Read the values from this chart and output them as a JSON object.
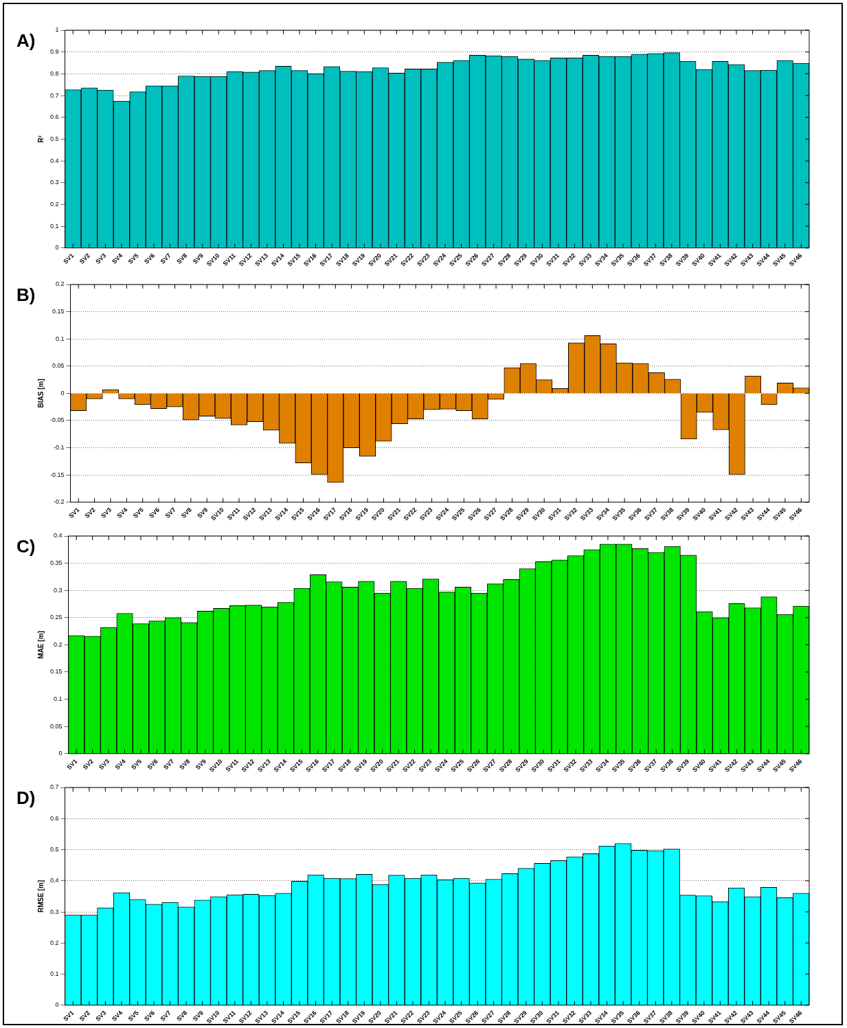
{
  "chart_data": [
    {
      "type": "bar",
      "title": "A)",
      "ylabel": "R²",
      "categories": [
        "SV1",
        "SV2",
        "SV3",
        "SV4",
        "SV5",
        "SV6",
        "SV7",
        "SV8",
        "SV9",
        "SV10",
        "SV11",
        "SV12",
        "SV13",
        "SV14",
        "SV15",
        "SV16",
        "SV17",
        "SV18",
        "SV19",
        "SV20",
        "SV21",
        "SV22",
        "SV23",
        "SV24",
        "SV25",
        "SV26",
        "SV27",
        "SV28",
        "SV29",
        "SV30",
        "SV31",
        "SV32",
        "SV33",
        "SV34",
        "SV35",
        "SV36",
        "SV37",
        "SV38",
        "SV39",
        "SV40",
        "SV41",
        "SV42",
        "SV43",
        "SV44",
        "SV45",
        "SV46"
      ],
      "values": [
        0.727,
        0.735,
        0.725,
        0.675,
        0.717,
        0.745,
        0.745,
        0.79,
        0.788,
        0.788,
        0.81,
        0.808,
        0.815,
        0.835,
        0.815,
        0.8,
        0.833,
        0.812,
        0.81,
        0.828,
        0.803,
        0.822,
        0.822,
        0.853,
        0.862,
        0.885,
        0.883,
        0.88,
        0.868,
        0.862,
        0.873,
        0.873,
        0.885,
        0.88,
        0.88,
        0.89,
        0.893,
        0.897,
        0.858,
        0.82,
        0.857,
        0.843,
        0.815,
        0.817,
        0.862,
        0.848
      ],
      "color": "#00bfbf",
      "ylim": [
        0,
        1
      ],
      "yticks": [
        0,
        0.1,
        0.2,
        0.3,
        0.4,
        0.5,
        0.6,
        0.7,
        0.8,
        0.9,
        1
      ],
      "grid": "y",
      "line_style": "dotted",
      "legend": false
    },
    {
      "type": "bar",
      "title": "B)",
      "ylabel": "BIAS [m]",
      "categories": [
        "SV1",
        "SV2",
        "SV3",
        "SV4",
        "SV5",
        "SV6",
        "SV7",
        "SV8",
        "SV9",
        "SV10",
        "SV11",
        "SV12",
        "SV13",
        "SV14",
        "SV15",
        "SV16",
        "SV17",
        "SV18",
        "SV19",
        "SV20",
        "SV21",
        "SV22",
        "SV23",
        "SV24",
        "SV25",
        "SV26",
        "SV27",
        "SV28",
        "SV29",
        "SV30",
        "SV31",
        "SV32",
        "SV33",
        "SV34",
        "SV35",
        "SV36",
        "SV37",
        "SV38",
        "SV39",
        "SV40",
        "SV41",
        "SV42",
        "SV43",
        "SV44",
        "SV45",
        "SV46"
      ],
      "values": [
        -0.032,
        -0.01,
        0.007,
        -0.01,
        -0.021,
        -0.028,
        -0.025,
        -0.049,
        -0.042,
        -0.046,
        -0.058,
        -0.052,
        -0.068,
        -0.092,
        -0.128,
        -0.149,
        -0.164,
        -0.1,
        -0.116,
        -0.088,
        -0.056,
        -0.047,
        -0.03,
        -0.029,
        -0.032,
        -0.047,
        -0.011,
        0.047,
        0.055,
        0.025,
        0.009,
        0.093,
        0.106,
        0.091,
        0.056,
        0.055,
        0.038,
        0.026,
        -0.084,
        -0.035,
        -0.067,
        -0.149,
        0.032,
        -0.021,
        0.019,
        0.01
      ],
      "color": "#e08000",
      "ylim": [
        -0.2,
        0.2
      ],
      "yticks": [
        -0.2,
        -0.15,
        -0.1,
        -0.05,
        0,
        0.05,
        0.1,
        0.15,
        0.2
      ],
      "grid": "y",
      "line_style": "dotted",
      "legend": false
    },
    {
      "type": "bar",
      "title": "C)",
      "ylabel": "MAE [m]",
      "categories": [
        "SV1",
        "SV2",
        "SV3",
        "SV4",
        "SV5",
        "SV6",
        "SV7",
        "SV8",
        "SV9",
        "SV10",
        "SV11",
        "SV12",
        "SV13",
        "SV14",
        "SV15",
        "SV16",
        "SV17",
        "SV18",
        "SV19",
        "SV20",
        "SV21",
        "SV22",
        "SV23",
        "SV24",
        "SV25",
        "SV26",
        "SV27",
        "SV28",
        "SV29",
        "SV30",
        "SV31",
        "SV32",
        "SV33",
        "SV34",
        "SV35",
        "SV36",
        "SV37",
        "SV38",
        "SV39",
        "SV40",
        "SV41",
        "SV42",
        "SV43",
        "SV44",
        "SV45",
        "SV46"
      ],
      "values": [
        0.217,
        0.216,
        0.232,
        0.258,
        0.239,
        0.244,
        0.25,
        0.241,
        0.262,
        0.267,
        0.272,
        0.273,
        0.27,
        0.278,
        0.304,
        0.329,
        0.316,
        0.306,
        0.317,
        0.295,
        0.317,
        0.304,
        0.321,
        0.297,
        0.306,
        0.295,
        0.312,
        0.32,
        0.34,
        0.353,
        0.356,
        0.364,
        0.375,
        0.385,
        0.385,
        0.377,
        0.37,
        0.381,
        0.365,
        0.261,
        0.25,
        0.276,
        0.268,
        0.288,
        0.256,
        0.271
      ],
      "color": "#00e600",
      "ylim": [
        0,
        0.4
      ],
      "yticks": [
        0,
        0.05,
        0.1,
        0.15,
        0.2,
        0.25,
        0.3,
        0.35,
        0.4
      ],
      "grid": "y",
      "line_style": "dotted",
      "legend": false
    },
    {
      "type": "bar",
      "title": "D)",
      "ylabel": "RMSE [m]",
      "categories": [
        "SV1",
        "SV2",
        "SV3",
        "SV4",
        "SV5",
        "SV6",
        "SV7",
        "SV8",
        "SV9",
        "SV10",
        "SV11",
        "SV12",
        "SV13",
        "SV14",
        "SV15",
        "SV16",
        "SV17",
        "SV18",
        "SV19",
        "SV20",
        "SV21",
        "SV22",
        "SV23",
        "SV24",
        "SV25",
        "SV26",
        "SV27",
        "SV28",
        "SV29",
        "SV30",
        "SV31",
        "SV32",
        "SV33",
        "SV34",
        "SV35",
        "SV36",
        "SV37",
        "SV38",
        "SV39",
        "SV40",
        "SV41",
        "SV42",
        "SV43",
        "SV44",
        "SV45",
        "SV46"
      ],
      "values": [
        0.29,
        0.29,
        0.313,
        0.362,
        0.34,
        0.325,
        0.331,
        0.316,
        0.338,
        0.349,
        0.355,
        0.357,
        0.353,
        0.36,
        0.399,
        0.419,
        0.408,
        0.407,
        0.421,
        0.388,
        0.418,
        0.408,
        0.419,
        0.403,
        0.408,
        0.393,
        0.405,
        0.423,
        0.44,
        0.456,
        0.465,
        0.477,
        0.487,
        0.512,
        0.52,
        0.498,
        0.497,
        0.502,
        0.354,
        0.352,
        0.333,
        0.377,
        0.349,
        0.379,
        0.346,
        0.36
      ],
      "color": "#00ffff",
      "ylim": [
        0,
        0.7
      ],
      "yticks": [
        0,
        0.1,
        0.2,
        0.3,
        0.4,
        0.5,
        0.6,
        0.7
      ],
      "grid": "y",
      "line_style": "dotted",
      "legend": false
    }
  ]
}
